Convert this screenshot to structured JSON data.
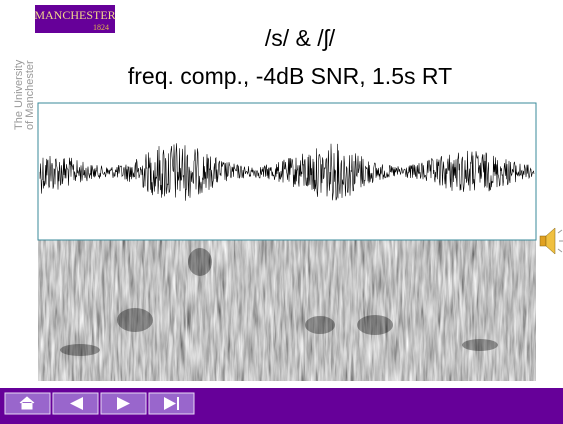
{
  "logo": {
    "name": "MANCHESTER",
    "year": "1824"
  },
  "side_text": {
    "line1": "The University",
    "line2": "of Manchester"
  },
  "title": {
    "line1": "/s/ & /ʃ/",
    "line2": "freq. comp., -4dB SNR, 1.5s RT"
  }
}
